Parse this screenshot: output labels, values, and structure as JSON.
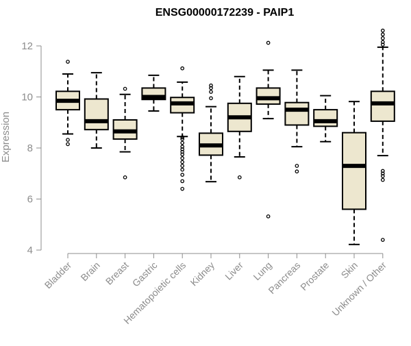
{
  "chart_data": {
    "type": "box",
    "title": "ENSG00000172239 - PAIP1",
    "xlabel": "",
    "ylabel": "Expression",
    "ylim": [
      4,
      12.6
    ],
    "yticks": [
      4,
      6,
      8,
      10,
      12
    ],
    "grid": false,
    "box_fill": "#ede7cf",
    "categories": [
      "Bladder",
      "Brain",
      "Breast",
      "Gastric",
      "Hematopoietic cells",
      "Kidney",
      "Liver",
      "Lung",
      "Pancreas",
      "Prostate",
      "Skin",
      "Unknown / Other"
    ],
    "boxes": [
      {
        "label": "Bladder",
        "whisker_low": 8.55,
        "q1": 9.5,
        "median": 9.85,
        "q3": 10.22,
        "whisker_high": 10.9,
        "outliers": [
          11.38,
          8.32,
          8.15
        ]
      },
      {
        "label": "Brain",
        "whisker_low": 8.0,
        "q1": 8.72,
        "median": 9.05,
        "q3": 9.92,
        "whisker_high": 10.95,
        "outliers": []
      },
      {
        "label": "Breast",
        "whisker_low": 7.85,
        "q1": 8.35,
        "median": 8.65,
        "q3": 9.1,
        "whisker_high": 10.1,
        "outliers": [
          10.32,
          6.85
        ]
      },
      {
        "label": "Gastric",
        "whisker_low": 9.45,
        "q1": 9.9,
        "median": 10.0,
        "q3": 10.35,
        "whisker_high": 10.85,
        "outliers": []
      },
      {
        "label": "Hematopoietic cells",
        "whisker_low": 8.45,
        "q1": 9.38,
        "median": 9.75,
        "q3": 9.98,
        "whisker_high": 10.58,
        "outliers": [
          11.12,
          8.42,
          8.35,
          8.2,
          8.05,
          7.95,
          7.85,
          7.75,
          7.6,
          7.45,
          7.3,
          7.15,
          6.95,
          6.7,
          6.4
        ]
      },
      {
        "label": "Kidney",
        "whisker_low": 6.68,
        "q1": 7.72,
        "median": 8.1,
        "q3": 8.58,
        "whisker_high": 9.62,
        "outliers": [
          10.45,
          10.35,
          10.2,
          9.95
        ]
      },
      {
        "label": "Liver",
        "whisker_low": 7.65,
        "q1": 8.65,
        "median": 9.2,
        "q3": 9.75,
        "whisker_high": 10.8,
        "outliers": [
          6.85
        ]
      },
      {
        "label": "Lung",
        "whisker_low": 9.15,
        "q1": 9.72,
        "median": 9.95,
        "q3": 10.35,
        "whisker_high": 11.05,
        "outliers": [
          12.12,
          5.32
        ]
      },
      {
        "label": "Pancreas",
        "whisker_low": 8.05,
        "q1": 8.9,
        "median": 9.5,
        "q3": 9.78,
        "whisker_high": 11.05,
        "outliers": [
          7.3,
          7.08
        ]
      },
      {
        "label": "Prostate",
        "whisker_low": 8.25,
        "q1": 8.85,
        "median": 9.05,
        "q3": 9.5,
        "whisker_high": 10.05,
        "outliers": []
      },
      {
        "label": "Skin",
        "whisker_low": 4.22,
        "q1": 5.6,
        "median": 7.3,
        "q3": 8.6,
        "whisker_high": 9.82,
        "outliers": []
      },
      {
        "label": "Unknown / Other",
        "whisker_low": 7.7,
        "q1": 9.05,
        "median": 9.75,
        "q3": 10.22,
        "whisker_high": 11.95,
        "outliers": [
          12.6,
          12.45,
          12.3,
          12.15,
          12.05,
          7.1,
          7.0,
          6.9,
          6.75,
          4.4
        ]
      }
    ]
  }
}
